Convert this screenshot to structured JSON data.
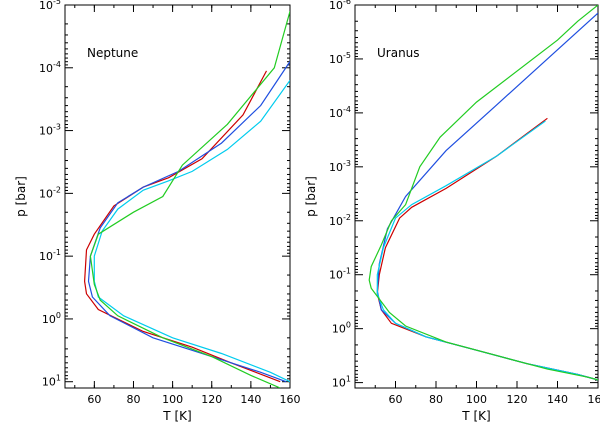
{
  "colors": {
    "red": "#cc0000",
    "blue": "#1f4fe0",
    "cyan": "#00ccee",
    "green": "#22cc22"
  },
  "chart_data": [
    {
      "type": "line",
      "title": "Neptune",
      "xlabel": "T [K]",
      "ylabel": "p [bar]",
      "xlim": [
        45,
        160
      ],
      "ylim_log10": [
        1.1,
        -5
      ],
      "yscale": "log",
      "y_inverted": true,
      "xticks": [
        60,
        80,
        100,
        120,
        140,
        160
      ],
      "xtick_labels": [
        "60",
        "80",
        "100",
        "120",
        "140",
        "160"
      ],
      "yticks_log10": [
        -5,
        -4,
        -3,
        -2,
        -1,
        0,
        1
      ],
      "ytick_labels": [
        "10^-5",
        "10^-4",
        "10^-3",
        "10^-2",
        "10^-1",
        "10^0",
        "10^1"
      ],
      "series": [
        {
          "name": "red",
          "color": "red",
          "points": [
            [
              148,
              -3.95
            ],
            [
              136,
              -3.25
            ],
            [
              115,
              -2.55
            ],
            [
              98,
              -2.25
            ],
            [
              85,
              -2.1
            ],
            [
              70,
              -1.8
            ],
            [
              60,
              -1.35
            ],
            [
              56,
              -1.1
            ],
            [
              55,
              -0.6
            ],
            [
              56,
              -0.4
            ],
            [
              62,
              -0.15
            ],
            [
              85,
              0.2
            ],
            [
              110,
              0.45
            ],
            [
              130,
              0.7
            ],
            [
              155,
              1.0
            ]
          ]
        },
        {
          "name": "blue",
          "color": "blue",
          "points": [
            [
              160,
              -4.1
            ],
            [
              145,
              -3.4
            ],
            [
              125,
              -2.8
            ],
            [
              103,
              -2.35
            ],
            [
              85,
              -2.1
            ],
            [
              72,
              -1.85
            ],
            [
              63,
              -1.45
            ],
            [
              58,
              -1.0
            ],
            [
              57,
              -0.6
            ],
            [
              59,
              -0.35
            ],
            [
              68,
              -0.05
            ],
            [
              90,
              0.3
            ],
            [
              120,
              0.6
            ],
            [
              145,
              0.85
            ],
            [
              158,
              1.0
            ]
          ]
        },
        {
          "name": "cyan",
          "color": "cyan",
          "points": [
            [
              160,
              -3.8
            ],
            [
              145,
              -3.15
            ],
            [
              128,
              -2.7
            ],
            [
              110,
              -2.35
            ],
            [
              98,
              -2.2
            ],
            [
              85,
              -2.05
            ],
            [
              72,
              -1.75
            ],
            [
              64,
              -1.4
            ],
            [
              60,
              -1.0
            ],
            [
              60,
              -0.6
            ],
            [
              62,
              -0.35
            ],
            [
              75,
              -0.05
            ],
            [
              100,
              0.3
            ],
            [
              125,
              0.55
            ],
            [
              150,
              0.85
            ],
            [
              160,
              1.0
            ]
          ]
        },
        {
          "name": "green",
          "color": "green",
          "points": [
            [
              160,
              -4.9
            ],
            [
              152,
              -4.0
            ],
            [
              128,
              -3.1
            ],
            [
              105,
              -2.45
            ],
            [
              95,
              -1.95
            ],
            [
              80,
              -1.7
            ],
            [
              62,
              -1.35
            ],
            [
              58,
              -1.0
            ],
            [
              60,
              -0.55
            ],
            [
              63,
              -0.3
            ],
            [
              72,
              -0.05
            ],
            [
              95,
              0.3
            ],
            [
              120,
              0.6
            ],
            [
              140,
              0.9
            ],
            [
              155,
              1.1
            ]
          ]
        }
      ]
    },
    {
      "type": "line",
      "title": "Uranus",
      "xlabel": "T [K]",
      "ylabel": "p [bar]",
      "xlim": [
        40,
        160
      ],
      "ylim_log10": [
        1.1,
        -6
      ],
      "yscale": "log",
      "y_inverted": true,
      "xticks": [
        60,
        80,
        100,
        120,
        140,
        160
      ],
      "xtick_labels": [
        "60",
        "80",
        "100",
        "120",
        "140",
        "160"
      ],
      "yticks_log10": [
        -6,
        -5,
        -4,
        -3,
        -2,
        -1,
        0,
        1
      ],
      "ytick_labels": [
        "10^-6",
        "10^-5",
        "10^-4",
        "10^-3",
        "10^-2",
        "10^-1",
        "10^0",
        "10^1"
      ],
      "series": [
        {
          "name": "red",
          "color": "red",
          "points": [
            [
              135,
              -3.9
            ],
            [
              110,
              -3.2
            ],
            [
              85,
              -2.6
            ],
            [
              68,
              -2.25
            ],
            [
              62,
              -2.05
            ],
            [
              55,
              -1.5
            ],
            [
              52,
              -1.0
            ],
            [
              51,
              -0.65
            ],
            [
              53,
              -0.35
            ],
            [
              58,
              -0.1
            ],
            [
              75,
              0.15
            ],
            [
              100,
              0.4
            ],
            [
              125,
              0.65
            ],
            [
              150,
              0.85
            ],
            [
              160,
              0.95
            ]
          ]
        },
        {
          "name": "blue",
          "color": "blue",
          "points": [
            [
              160,
              -5.85
            ],
            [
              135,
              -5.0
            ],
            [
              110,
              -4.15
            ],
            [
              85,
              -3.3
            ],
            [
              65,
              -2.45
            ],
            [
              56,
              -1.85
            ],
            [
              52,
              -1.2
            ],
            [
              51,
              -0.7
            ],
            [
              53,
              -0.35
            ],
            [
              60,
              -0.1
            ],
            [
              75,
              0.15
            ],
            [
              100,
              0.4
            ],
            [
              125,
              0.65
            ],
            [
              150,
              0.85
            ],
            [
              160,
              0.95
            ]
          ]
        },
        {
          "name": "cyan",
          "color": "cyan",
          "points": [
            [
              134,
              -3.85
            ],
            [
              110,
              -3.2
            ],
            [
              85,
              -2.65
            ],
            [
              68,
              -2.3
            ],
            [
              60,
              -2.05
            ],
            [
              54,
              -1.5
            ],
            [
              51,
              -1.0
            ],
            [
              51,
              -0.65
            ],
            [
              54,
              -0.35
            ],
            [
              60,
              -0.1
            ],
            [
              75,
              0.15
            ],
            [
              100,
              0.4
            ],
            [
              125,
              0.65
            ],
            [
              150,
              0.85
            ],
            [
              160,
              0.95
            ]
          ]
        },
        {
          "name": "green",
          "color": "green",
          "points": [
            [
              160,
              -6.0
            ],
            [
              150,
              -5.7
            ],
            [
              140,
              -5.35
            ],
            [
              100,
              -4.2
            ],
            [
              82,
              -3.55
            ],
            [
              72,
              -3.0
            ],
            [
              65,
              -2.3
            ],
            [
              58,
              -2.0
            ],
            [
              53,
              -1.55
            ],
            [
              48,
              -1.15
            ],
            [
              47,
              -0.9
            ],
            [
              48,
              -0.75
            ],
            [
              52,
              -0.55
            ],
            [
              57,
              -0.3
            ],
            [
              65,
              -0.05
            ],
            [
              85,
              0.25
            ],
            [
              110,
              0.5
            ],
            [
              135,
              0.75
            ],
            [
              155,
              0.9
            ],
            [
              160,
              0.95
            ]
          ]
        }
      ]
    }
  ]
}
